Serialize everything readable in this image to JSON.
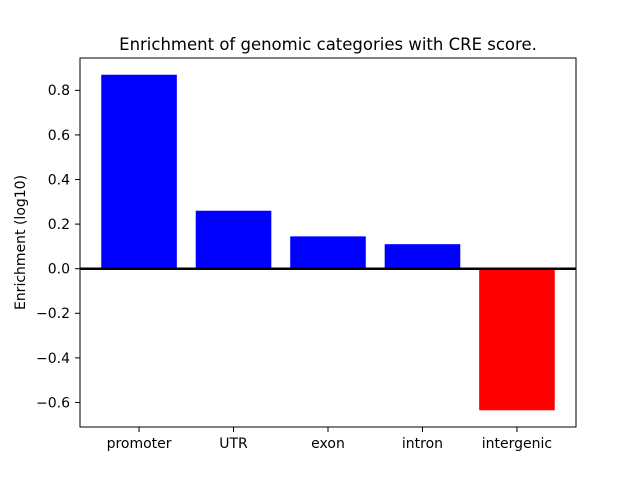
{
  "figure": {
    "background": "#ffffff"
  },
  "chart_data": {
    "type": "bar",
    "title": "Enrichment of genomic categories with CRE score.",
    "ylabel": "Enrichment (log10)",
    "xlabel": "",
    "categories": [
      "promoter",
      "UTR",
      "exon",
      "intron",
      "intergenic"
    ],
    "values": [
      0.87,
      0.26,
      0.145,
      0.11,
      -0.635
    ],
    "bar_colors": [
      "#0000ff",
      "#0000ff",
      "#0000ff",
      "#0000ff",
      "#ff0000"
    ],
    "positive_color": "#0000ff",
    "negative_color": "#ff0000",
    "yticks": [
      0.8,
      0.6,
      0.4,
      0.2,
      0.0,
      -0.2,
      -0.4,
      -0.6
    ],
    "ytick_labels": [
      "0.8",
      "0.6",
      "0.4",
      "0.2",
      "0.0",
      "−0.2",
      "−0.4",
      "−0.6"
    ],
    "ylim": [
      -0.71,
      0.945
    ],
    "xlim": [
      -0.625,
      4.625
    ],
    "bar_width": 0.8,
    "zero_line": {
      "y": 0.0,
      "color": "#000000",
      "stroke_width": 2.5
    },
    "grid": false,
    "legend": null,
    "axis_color": "#000000",
    "text_color": "#000000"
  }
}
